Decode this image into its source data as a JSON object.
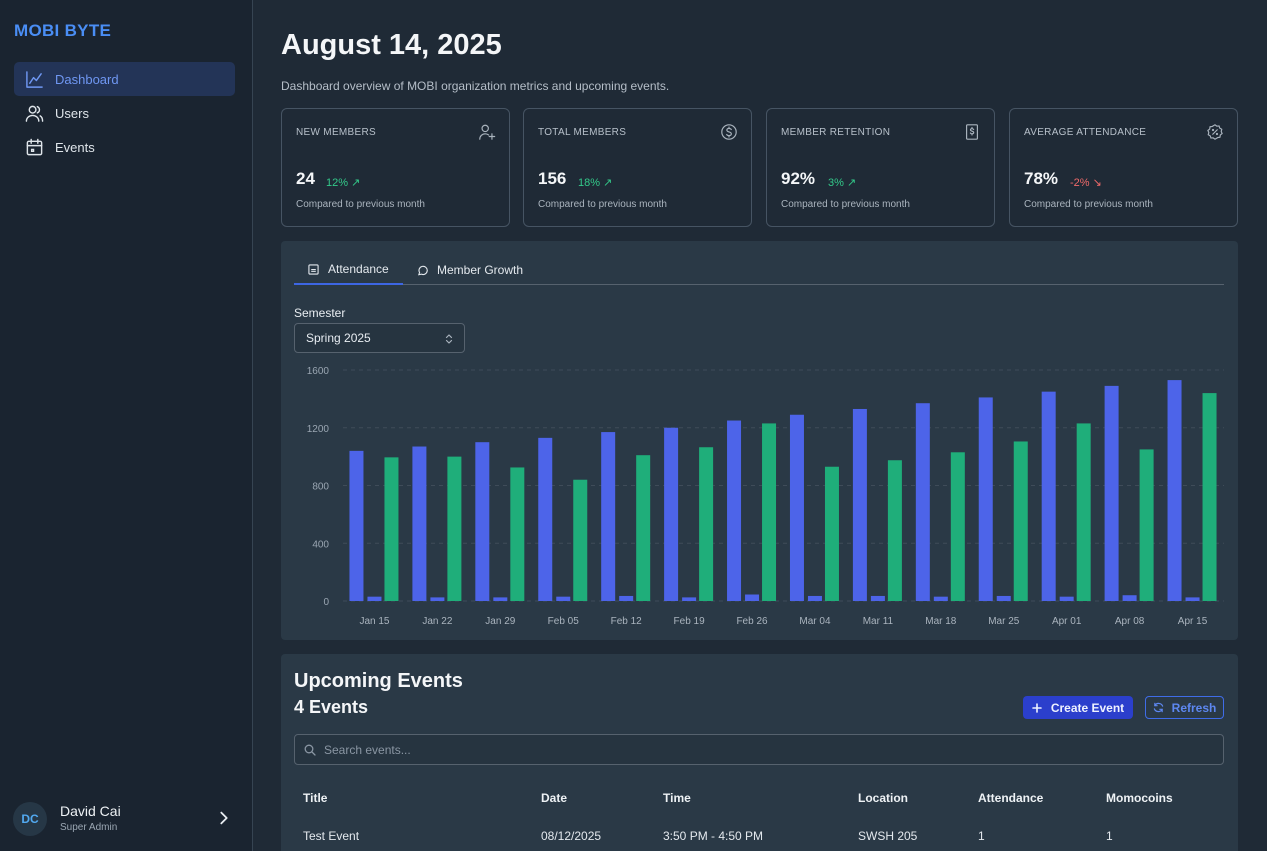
{
  "app": {
    "brand": "MOBI BYTE"
  },
  "sidebar": {
    "items": [
      {
        "label": "Dashboard",
        "icon": "chart-icon",
        "active": true
      },
      {
        "label": "Users",
        "icon": "users-icon",
        "active": false
      },
      {
        "label": "Events",
        "icon": "calendar-icon",
        "active": false
      }
    ],
    "user": {
      "initials": "DC",
      "name": "David Cai",
      "role": "Super Admin"
    }
  },
  "header": {
    "title": "August 14, 2025",
    "subtitle": "Dashboard overview of MOBI organization metrics and upcoming events."
  },
  "stats": [
    {
      "label": "NEW MEMBERS",
      "icon": "user-plus-icon",
      "value": "24",
      "change": "12% ↗",
      "direction": "up",
      "footnote": "Compared to previous month"
    },
    {
      "label": "TOTAL MEMBERS",
      "icon": "dollar-circle-icon",
      "value": "156",
      "change": "18% ↗",
      "direction": "up",
      "footnote": "Compared to previous month"
    },
    {
      "label": "MEMBER RETENTION",
      "icon": "receipt-icon",
      "value": "92%",
      "change": "3% ↗",
      "direction": "up",
      "footnote": "Compared to previous month"
    },
    {
      "label": "AVERAGE ATTENDANCE",
      "icon": "badge-percent-icon",
      "value": "78%",
      "change": "-2% ↘",
      "direction": "down",
      "footnote": "Compared to previous month"
    }
  ],
  "tabs": [
    {
      "label": "Attendance",
      "icon": "bar-chart-small-icon",
      "active": true
    },
    {
      "label": "Member Growth",
      "icon": "message-circle-icon",
      "active": false
    }
  ],
  "semester": {
    "label": "Semester",
    "value": "Spring 2025"
  },
  "colors": {
    "blue": "#4d64e9",
    "green": "#1fae7a",
    "accent": "#3d66e3"
  },
  "chart_data": {
    "type": "bar",
    "categories": [
      "Jan 15",
      "Jan 22",
      "Jan 29",
      "Feb 05",
      "Feb 12",
      "Feb 19",
      "Feb 26",
      "Mar 04",
      "Mar 11",
      "Mar 18",
      "Mar 25",
      "Apr 01",
      "Apr 08",
      "Apr 15"
    ],
    "ylim": [
      0,
      1600
    ],
    "yticks": [
      0,
      400,
      800,
      1200,
      1600
    ],
    "grid": true,
    "legend": "none",
    "series": [
      {
        "color": "#4d64e9",
        "values": [
          1040,
          1070,
          1100,
          1130,
          1170,
          1200,
          1250,
          1290,
          1330,
          1370,
          1410,
          1450,
          1490,
          1530
        ]
      },
      {
        "color": "#4d64e9",
        "values": [
          30,
          25,
          25,
          30,
          35,
          25,
          45,
          35,
          35,
          30,
          35,
          30,
          40,
          25
        ]
      },
      {
        "color": "#1fae7a",
        "values": [
          995,
          1000,
          925,
          840,
          1010,
          1065,
          1230,
          930,
          975,
          1030,
          1105,
          1230,
          1050,
          1440
        ]
      }
    ]
  },
  "events": {
    "title": "Upcoming Events",
    "count_label": "4 Events",
    "create_label": "Create Event",
    "refresh_label": "Refresh",
    "search_placeholder": "Search events...",
    "columns": [
      "Title",
      "Date",
      "Time",
      "Location",
      "Attendance",
      "Momocoins"
    ],
    "rows": [
      [
        "Test Event",
        "08/12/2025",
        "3:50 PM - 4:50 PM",
        "SWSH 205",
        "1",
        "1"
      ]
    ]
  }
}
